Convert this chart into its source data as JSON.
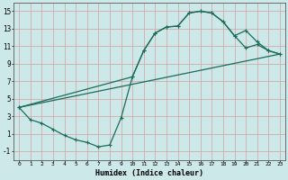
{
  "xlabel": "Humidex (Indice chaleur)",
  "bg_color": "#cce8e8",
  "grid_color": "#d4a0a0",
  "line_color": "#1a6b5a",
  "xlim": [
    -0.5,
    23.5
  ],
  "ylim": [
    -2,
    16
  ],
  "xticks": [
    0,
    1,
    2,
    3,
    4,
    5,
    6,
    7,
    8,
    9,
    10,
    11,
    12,
    13,
    14,
    15,
    16,
    17,
    18,
    19,
    20,
    21,
    22,
    23
  ],
  "yticks": [
    -1,
    1,
    3,
    5,
    7,
    9,
    11,
    13,
    15
  ],
  "curve1_x": [
    0,
    1,
    2,
    3,
    4,
    5,
    6,
    7,
    8,
    9,
    10,
    11,
    12,
    13,
    14,
    15,
    16,
    17,
    18,
    19,
    20,
    21,
    22,
    23
  ],
  "curve1_y": [
    4.0,
    2.6,
    2.2,
    1.5,
    0.8,
    0.3,
    0.0,
    -0.5,
    -0.3,
    2.8,
    7.5,
    10.5,
    12.5,
    13.2,
    13.3,
    14.8,
    15.0,
    14.8,
    13.8,
    12.2,
    10.8,
    11.2,
    10.5,
    10.1
  ],
  "curve2_x": [
    0,
    10,
    11,
    12,
    13,
    14,
    15,
    16,
    17,
    18,
    19,
    20,
    21,
    22,
    23
  ],
  "curve2_y": [
    4.0,
    7.5,
    10.5,
    12.5,
    13.2,
    13.3,
    14.8,
    15.0,
    14.8,
    13.8,
    12.2,
    12.8,
    11.5,
    10.5,
    10.1
  ],
  "curve3_x": [
    0,
    23
  ],
  "curve3_y": [
    4.0,
    10.1
  ],
  "marker": "+",
  "markersize": 3,
  "linewidth": 0.9
}
